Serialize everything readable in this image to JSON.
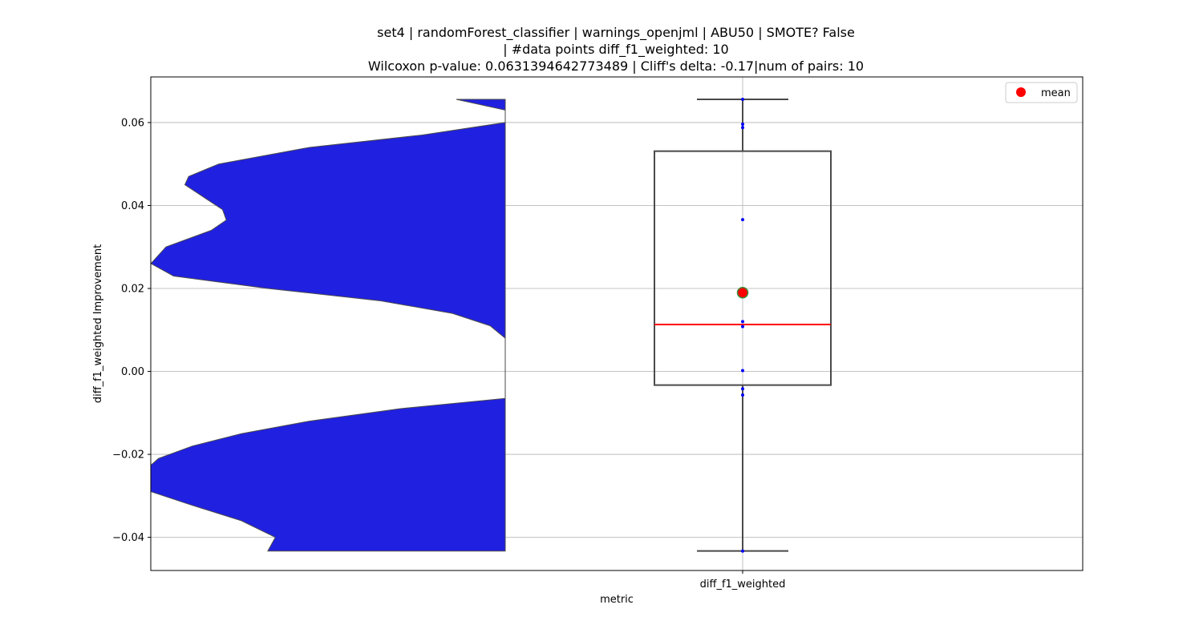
{
  "chart_data": {
    "type": "box+violin",
    "title_lines": [
      "set4 | randomForest_classifier | warnings_openjml | ABU50 | SMOTE? False",
      "| #data points diff_f1_weighted: 10",
      "Wilcoxon p-value: 0.0631394642773489 | Cliff's delta: -0.17|num of pairs: 10"
    ],
    "xlabel": "metric",
    "ylabel": "diff_f1_weighted Improvement",
    "categories": [
      "diff_f1_weighted"
    ],
    "ylim": [
      -0.048,
      0.071
    ],
    "yticks": [
      -0.04,
      -0.02,
      0.0,
      0.02,
      0.04,
      0.06
    ],
    "ytick_labels": [
      "−0.04",
      "−0.02",
      "0.00",
      "0.02",
      "0.04",
      "0.06"
    ],
    "grid": true,
    "legend": {
      "position": "top-right",
      "entries": [
        "mean"
      ]
    },
    "box": {
      "whisker_low": -0.0433,
      "q1": -0.0033,
      "median": 0.0113,
      "q3": 0.0531,
      "whisker_high": 0.0656,
      "mean": 0.019,
      "median_color": "#ff0000",
      "box_edge_color": "#4a4a4a",
      "mean_color": "#ff0000",
      "mean_edge_color": "#3a8a3a"
    },
    "points": [
      0.0656,
      0.0596,
      0.0588,
      0.0366,
      0.012,
      0.0108,
      0.0002,
      -0.0042,
      -0.0057,
      -0.0433
    ],
    "point_color": "#0000ff",
    "violin": {
      "color": "#2020e0",
      "edge_color": "#4a4a4a",
      "y_range": [
        -0.0433,
        0.0656
      ],
      "density": [
        [
          0.0656,
          0.13
        ],
        [
          0.063,
          0.0
        ],
        [
          0.06,
          0.0
        ],
        [
          0.057,
          0.22
        ],
        [
          0.054,
          0.52
        ],
        [
          0.05,
          0.76
        ],
        [
          0.047,
          0.84
        ],
        [
          0.045,
          0.85
        ],
        [
          0.042,
          0.8
        ],
        [
          0.039,
          0.75
        ],
        [
          0.0365,
          0.74
        ],
        [
          0.034,
          0.78
        ],
        [
          0.03,
          0.9
        ],
        [
          0.026,
          0.94
        ],
        [
          0.023,
          0.88
        ],
        [
          0.02,
          0.63
        ],
        [
          0.017,
          0.33
        ],
        [
          0.014,
          0.14
        ],
        [
          0.011,
          0.04
        ],
        [
          0.008,
          0.0
        ],
        [
          0.004,
          0.0
        ],
        [
          0.0,
          0.0
        ],
        [
          -0.004,
          0.0
        ],
        [
          -0.0065,
          0.0
        ],
        [
          -0.009,
          0.28
        ],
        [
          -0.012,
          0.52
        ],
        [
          -0.015,
          0.7
        ],
        [
          -0.018,
          0.83
        ],
        [
          -0.021,
          0.92
        ],
        [
          -0.025,
          0.97
        ],
        [
          -0.029,
          0.94
        ],
        [
          -0.032,
          0.84
        ],
        [
          -0.036,
          0.7
        ],
        [
          -0.04,
          0.61
        ],
        [
          -0.0433,
          0.63
        ]
      ]
    }
  }
}
